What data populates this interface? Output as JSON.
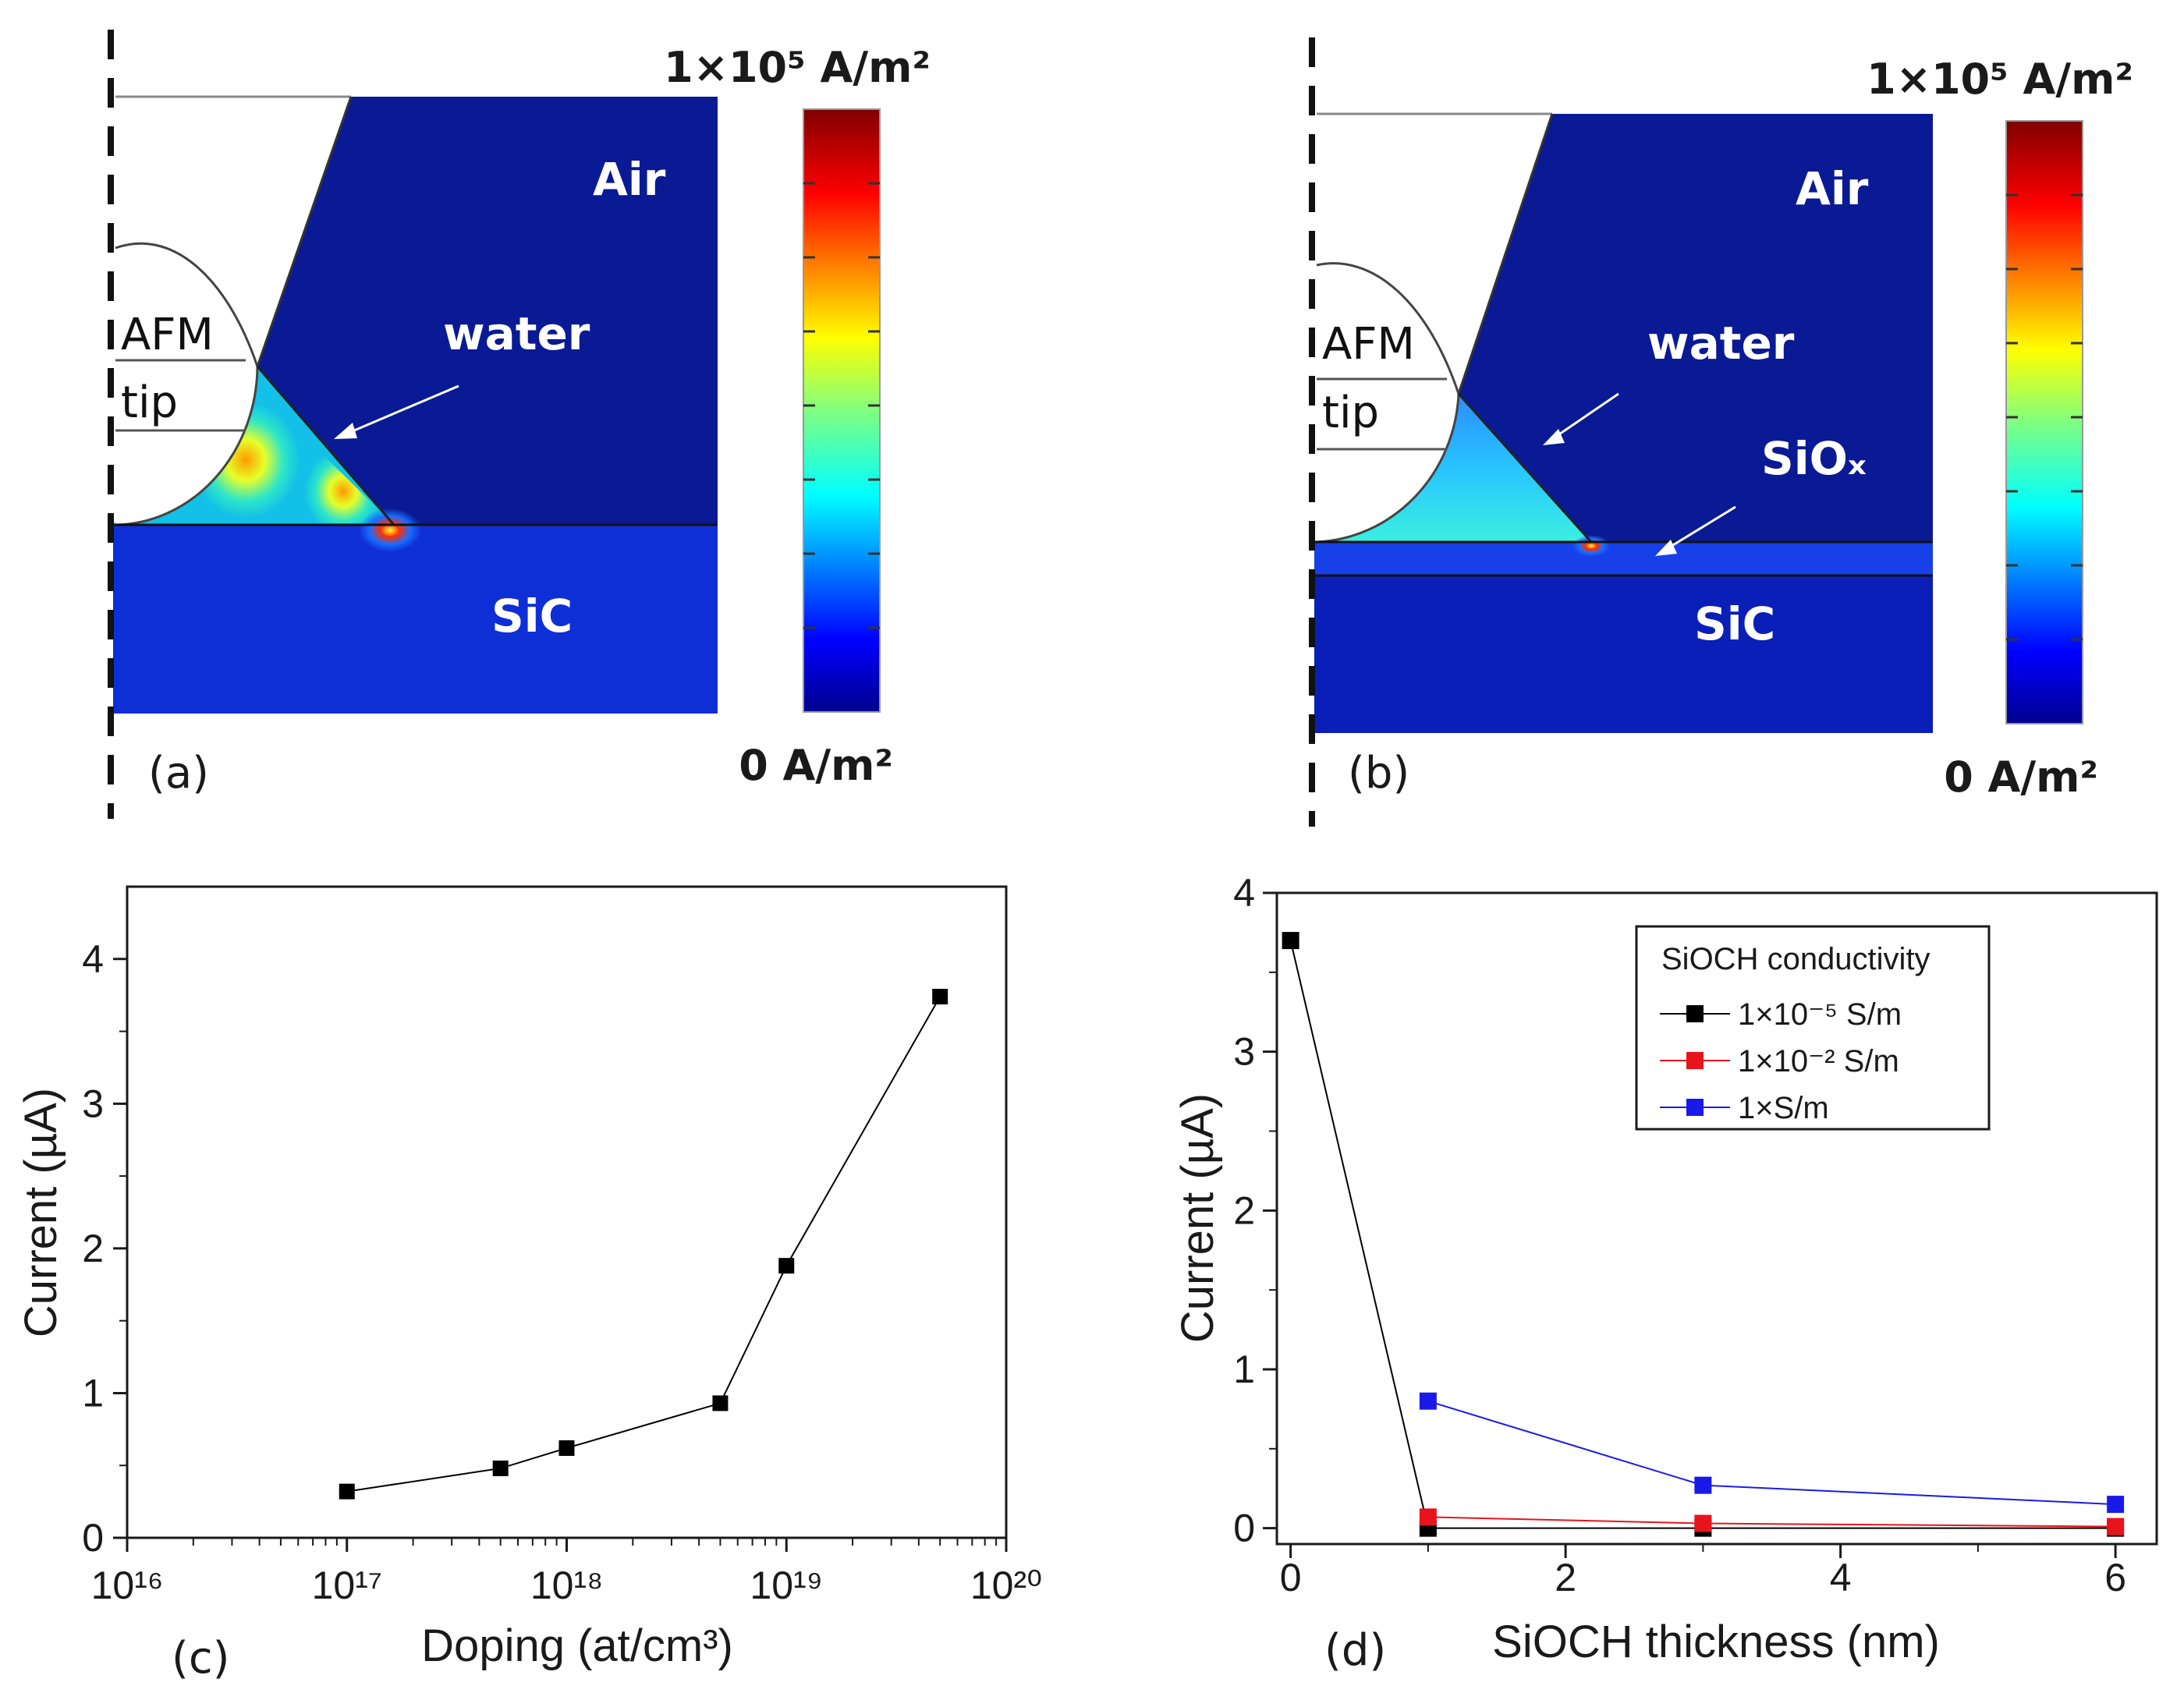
{
  "panels": {
    "a": {
      "caption": "(a)",
      "labels": {
        "air": "Air",
        "water": "water",
        "sic": "SiC",
        "tip_line1": "AFM",
        "tip_line2": "tip"
      },
      "colorbar": {
        "max_label": "1×10⁵ A/m²",
        "min_label": "0 A/m²"
      }
    },
    "b": {
      "caption": "(b)",
      "labels": {
        "air": "Air",
        "water": "water",
        "siox": "SiOₓ",
        "sic": "SiC",
        "tip_line1": "AFM",
        "tip_line2": "tip"
      },
      "colorbar": {
        "max_label": "1×10⁵ A/m²",
        "min_label": "0 A/m²"
      }
    },
    "c": {
      "caption": "(c)"
    },
    "d": {
      "caption": "(d)"
    }
  },
  "colors": {
    "domain_blue": "#0a1a94",
    "sic_blue": "#0f2fd6",
    "red_series": "#e8141c",
    "blue_series": "#1a1ae8"
  },
  "chart_data": [
    {
      "id": "c",
      "type": "line",
      "xscale": "log",
      "xlabel": "Doping (at/cm³)",
      "ylabel": "Current (µA)",
      "xlim": [
        1e+16,
        1e+20
      ],
      "ylim": [
        0,
        4.5
      ],
      "x_tick_labels": [
        "10¹⁶",
        "10¹⁷",
        "10¹⁸",
        "10¹⁹",
        "10²⁰"
      ],
      "y_tick_labels": [
        "0",
        "1",
        "2",
        "3",
        "4"
      ],
      "series": [
        {
          "name": "current",
          "color": "#000000",
          "x": [
            1e+17,
            5e+17,
            1e+18,
            5e+18,
            1e+19,
            5e+19
          ],
          "y": [
            0.32,
            0.48,
            0.62,
            0.93,
            1.88,
            3.74
          ]
        }
      ]
    },
    {
      "id": "d",
      "type": "line",
      "xlabel": "SiOCH thickness (nm)",
      "ylabel": "Current (µA)",
      "xlim": [
        -0.1,
        6.3
      ],
      "ylim": [
        -0.1,
        4.0
      ],
      "x_tick_labels": [
        "0",
        "2",
        "4",
        "6"
      ],
      "y_tick_labels": [
        "0",
        "1",
        "2",
        "3",
        "4"
      ],
      "legend": {
        "title": "SiOCH conductivity",
        "position": "top-right",
        "entries": [
          "1×10⁻⁵ S/m",
          "1×10⁻² S/m",
          "1×S/m"
        ]
      },
      "series": [
        {
          "name": "1×10⁻⁵ S/m",
          "color": "#000000",
          "x": [
            0,
            1,
            3,
            6
          ],
          "y": [
            3.7,
            0.0,
            0.0,
            0.0
          ]
        },
        {
          "name": "1×10⁻² S/m",
          "color": "#e8141c",
          "x": [
            1,
            3,
            6
          ],
          "y": [
            0.07,
            0.03,
            0.01
          ]
        },
        {
          "name": "1×S/m",
          "color": "#1a1ae8",
          "x": [
            1,
            3,
            6
          ],
          "y": [
            0.8,
            0.27,
            0.15
          ]
        }
      ]
    }
  ]
}
